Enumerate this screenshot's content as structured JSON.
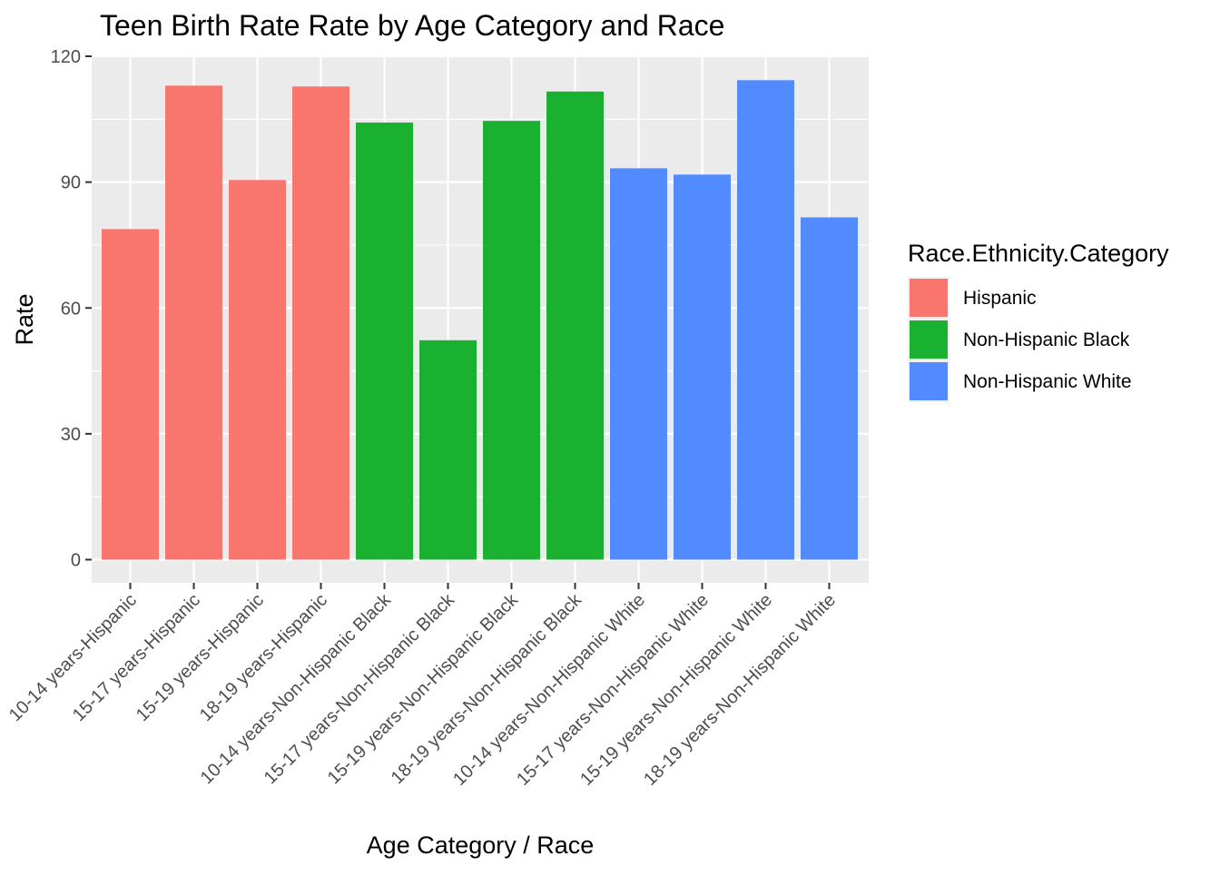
{
  "chart_data": {
    "type": "bar",
    "title": "Teen Birth Rate Rate by Age Category and Race",
    "xlabel": "Age Category / Race",
    "ylabel": "Rate",
    "ylim": [
      -4.5,
      120
    ],
    "yticks": [
      0,
      30,
      60,
      90,
      120
    ],
    "grid": true,
    "legend": {
      "title": "Race.Ethnicity.Category",
      "position": "right",
      "entries": [
        {
          "label": "Hispanic",
          "color": "#F8766D"
        },
        {
          "label": "Non-Hispanic Black",
          "color": "#19B12F"
        },
        {
          "label": "Non-Hispanic White",
          "color": "#528AFF"
        }
      ]
    },
    "categories": [
      "10-14 years-Hispanic",
      "15-17 years-Hispanic",
      "15-19 years-Hispanic",
      "18-19 years-Hispanic",
      "10-14 years-Non-Hispanic Black",
      "15-17 years-Non-Hispanic Black",
      "15-19 years-Non-Hispanic Black",
      "18-19 years-Non-Hispanic Black",
      "10-14 years-Non-Hispanic White",
      "15-17 years-Non-Hispanic White",
      "15-19 years-Non-Hispanic White",
      "18-19 years-Non-Hispanic White"
    ],
    "values": [
      78.8,
      113.0,
      90.5,
      112.8,
      104.2,
      52.3,
      104.6,
      111.6,
      93.3,
      91.8,
      114.3,
      81.6
    ],
    "groups": [
      "Hispanic",
      "Hispanic",
      "Hispanic",
      "Hispanic",
      "Non-Hispanic Black",
      "Non-Hispanic Black",
      "Non-Hispanic Black",
      "Non-Hispanic Black",
      "Non-Hispanic White",
      "Non-Hispanic White",
      "Non-Hispanic White",
      "Non-Hispanic White"
    ]
  }
}
